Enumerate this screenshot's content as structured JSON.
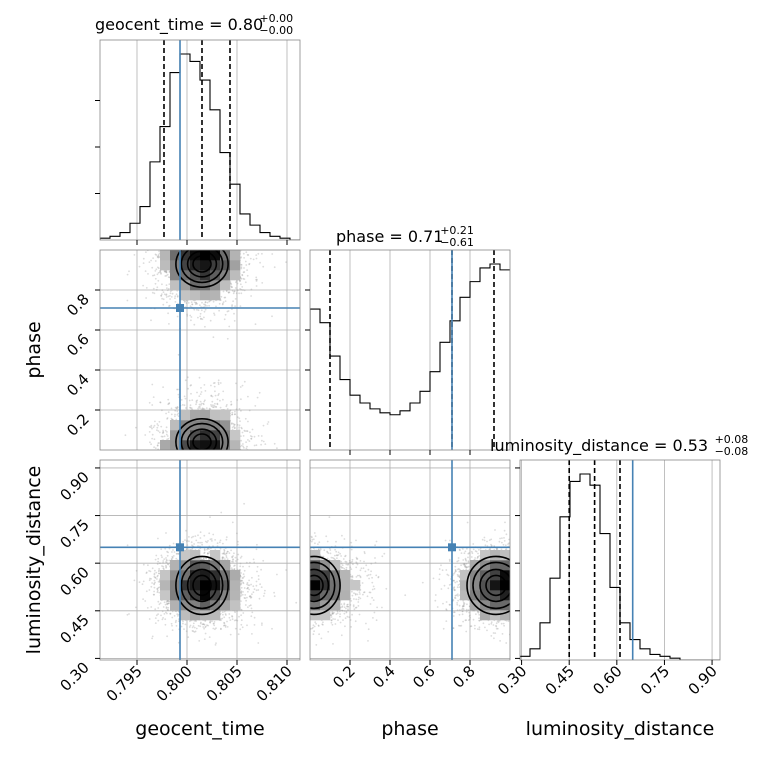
{
  "chart_data": {
    "type": "corner",
    "parameters": [
      "geocent_time",
      "phase",
      "luminosity_distance"
    ],
    "truth": {
      "geocent_time": 0.7993,
      "phase": 0.71,
      "luminosity_distance": 0.65
    },
    "truth_color": "#4682b4",
    "titles": [
      {
        "param": "geocent_time",
        "text": "geocent_time = 0.80",
        "plus": "+0.00",
        "minus": "−0.00"
      },
      {
        "param": "phase",
        "text": "phase = 0.71",
        "plus": "+0.21",
        "minus": "−0.61"
      },
      {
        "param": "luminosity_distance",
        "text": "luminosity_distance = 0.53",
        "plus": "+0.08",
        "minus": "−0.08"
      }
    ],
    "ranges": {
      "geocent_time": [
        0.7913,
        0.8113
      ],
      "phase": [
        0.0,
        1.0
      ],
      "luminosity_distance": [
        0.295,
        0.925
      ]
    },
    "ticks": {
      "geocent_time": {
        "values": [
          0.795,
          0.8,
          0.805,
          0.81
        ],
        "labels": [
          "0.795",
          "0.800",
          "0.805",
          "0.810"
        ]
      },
      "phase": {
        "values": [
          0.2,
          0.4,
          0.6,
          0.8
        ],
        "labels": [
          "0.2",
          "0.4",
          "0.6",
          "0.8"
        ]
      },
      "luminosity_distance": {
        "values": [
          0.3,
          0.45,
          0.6,
          0.75,
          0.9
        ],
        "labels": [
          "0.30",
          "0.45",
          "0.60",
          "0.75",
          "0.90"
        ]
      }
    },
    "quantiles": {
      "geocent_time": [
        0.7977,
        0.8015,
        0.8043
      ],
      "phase": [
        0.1,
        0.71,
        0.92
      ],
      "luminosity_distance": [
        0.45,
        0.53,
        0.61
      ]
    },
    "histograms": {
      "geocent_time": {
        "edges_start": 0.7913,
        "bin_width": 0.001,
        "counts": [
          1,
          2,
          4,
          9,
          18,
          42,
          61,
          90,
          100,
          96,
          86,
          70,
          47,
          30,
          14,
          8,
          4,
          2,
          1,
          0
        ]
      },
      "phase": {
        "edges_start": 0.0,
        "bin_width": 0.05,
        "counts": [
          72,
          65,
          48,
          36,
          28,
          24,
          21,
          19,
          18,
          20,
          24,
          30,
          40,
          55,
          66,
          78,
          86,
          93,
          95,
          92
        ]
      },
      "luminosity_distance": {
        "edges_start": 0.295,
        "bin_width": 0.0315,
        "counts": [
          2,
          6,
          20,
          44,
          77,
          96,
          100,
          94,
          68,
          39,
          20,
          11,
          6,
          3,
          2,
          1,
          0,
          0,
          0,
          0
        ]
      }
    },
    "axis_labels": {
      "x": [
        "geocent_time",
        "phase",
        "luminosity_distance"
      ],
      "y": [
        "phase",
        "luminosity_distance"
      ]
    },
    "grid": true
  }
}
